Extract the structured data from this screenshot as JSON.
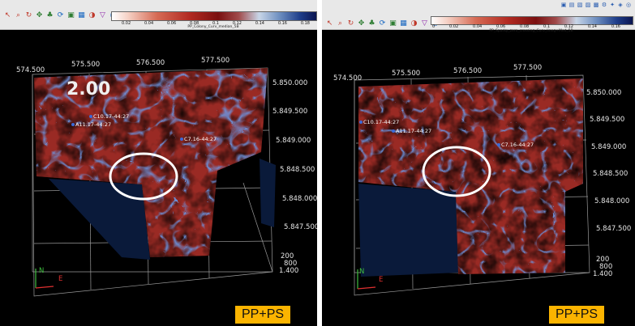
{
  "left": {
    "toolbar_icons": [
      "pointer-icon",
      "zoom-icon",
      "rotate-icon",
      "pan-icon",
      "tree-icon",
      "refresh-icon",
      "layers-icon",
      "grid-icon",
      "color-icon",
      "filter-icon",
      "globe-icon"
    ],
    "colorbar": {
      "ticks": [
        "0.02",
        "0.04",
        "0.06",
        "0.08",
        "0.1",
        "0.12",
        "0.14",
        "0.16",
        "0.18"
      ],
      "title": "PP_Colony_Curv_median_5B"
    },
    "x_labels": [
      "574.500",
      "575.500",
      "576.500",
      "577.500"
    ],
    "y_labels": [
      "5.850.000",
      "5.849.500",
      "5.849.000",
      "5.848.500",
      "5.848.000",
      "5.847.500"
    ],
    "z_labels": [
      "200",
      "800",
      "1.400"
    ],
    "wells": [
      "C10.17-44:27",
      "A11.17-44:27",
      "C7.16-44:27"
    ],
    "axis_letters": {
      "n": "N",
      "e": "E"
    },
    "badge": "PP+PS",
    "overlay_digits": "2.00"
  },
  "right": {
    "toolbar_icons": [
      "pointer-icon",
      "zoom-icon",
      "rotate-icon",
      "pan-icon",
      "tree-icon",
      "refresh-icon",
      "layers-icon",
      "grid-icon",
      "color-icon",
      "filter-icon",
      "globe-icon"
    ],
    "colorbar": {
      "ticks": [
        "0",
        "0.02",
        "0.04",
        "0.06",
        "0.08",
        "0.1",
        "0.12",
        "0.14",
        "0.16"
      ],
      "title": "PP_Sparky_zero_crossing_Curv_lineg+Med_5B"
    },
    "x_labels": [
      "574.500",
      "575.500",
      "576.500",
      "577.500"
    ],
    "y_labels": [
      "5.850.000",
      "5.849.500",
      "5.849.000",
      "5.848.500",
      "5.848.000",
      "5.847.500"
    ],
    "z_labels": [
      "200",
      "800",
      "1.400"
    ],
    "wells": [
      "C10.17-44:27",
      "A11.17-44:27",
      "C7.16-44:27"
    ],
    "axis_letters": {
      "n": "N",
      "e": "E"
    },
    "badge": "PP+PS"
  }
}
